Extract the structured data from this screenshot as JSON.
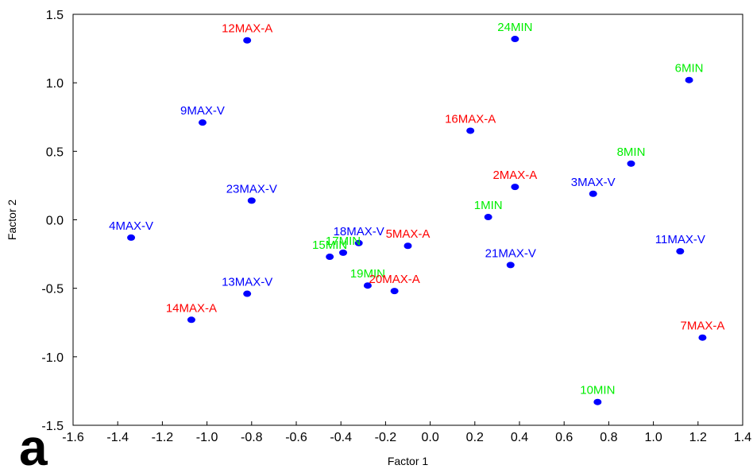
{
  "chart_data": {
    "type": "scatter",
    "panel_label": "a",
    "xlabel": "Factor 1",
    "ylabel": "Factor 2",
    "xlim": [
      -1.6,
      1.4
    ],
    "ylim": [
      -1.5,
      1.5
    ],
    "x_ticks": [
      "-1.6",
      "-1.4",
      "-1.2",
      "-1.0",
      "-0.8",
      "-0.6",
      "-0.4",
      "-0.2",
      "0.0",
      "0.2",
      "0.4",
      "0.6",
      "0.8",
      "1.0",
      "1.2",
      "1.4"
    ],
    "y_ticks": [
      "-1.5",
      "-1.0",
      "-0.5",
      "0.0",
      "0.5",
      "1.0",
      "1.5"
    ],
    "grid": false,
    "marker_color": "#0000ff",
    "label_colors": {
      "A": "#ff0000",
      "V": "#0000ff",
      "MIN": "#00ee00"
    },
    "points": [
      {
        "label": "12MAX-A",
        "x": -0.82,
        "y": 1.31,
        "group": "A"
      },
      {
        "label": "24MIN",
        "x": 0.38,
        "y": 1.32,
        "group": "MIN"
      },
      {
        "label": "6MIN",
        "x": 1.16,
        "y": 1.02,
        "group": "MIN"
      },
      {
        "label": "9MAX-V",
        "x": -1.02,
        "y": 0.71,
        "group": "V"
      },
      {
        "label": "16MAX-A",
        "x": 0.18,
        "y": 0.65,
        "group": "A"
      },
      {
        "label": "8MIN",
        "x": 0.9,
        "y": 0.41,
        "group": "MIN"
      },
      {
        "label": "2MAX-A",
        "x": 0.38,
        "y": 0.24,
        "group": "A"
      },
      {
        "label": "3MAX-V",
        "x": 0.73,
        "y": 0.19,
        "group": "V"
      },
      {
        "label": "23MAX-V",
        "x": -0.8,
        "y": 0.14,
        "group": "V"
      },
      {
        "label": "1MIN",
        "x": 0.26,
        "y": 0.02,
        "group": "MIN"
      },
      {
        "label": "4MAX-V",
        "x": -1.34,
        "y": -0.13,
        "group": "V"
      },
      {
        "label": "18MAX-V",
        "x": -0.32,
        "y": -0.17,
        "group": "V"
      },
      {
        "label": "5MAX-A",
        "x": -0.1,
        "y": -0.19,
        "group": "A"
      },
      {
        "label": "17MIN",
        "x": -0.39,
        "y": -0.24,
        "group": "MIN"
      },
      {
        "label": "15MIN",
        "x": -0.45,
        "y": -0.27,
        "group": "MIN"
      },
      {
        "label": "11MAX-V",
        "x": 1.12,
        "y": -0.23,
        "group": "V"
      },
      {
        "label": "21MAX-V",
        "x": 0.36,
        "y": -0.33,
        "group": "V"
      },
      {
        "label": "19MIN",
        "x": -0.28,
        "y": -0.48,
        "group": "MIN"
      },
      {
        "label": "20MAX-A",
        "x": -0.16,
        "y": -0.52,
        "group": "A"
      },
      {
        "label": "13MAX-V",
        "x": -0.82,
        "y": -0.54,
        "group": "V"
      },
      {
        "label": "14MAX-A",
        "x": -1.07,
        "y": -0.73,
        "group": "A"
      },
      {
        "label": "7MAX-A",
        "x": 1.22,
        "y": -0.86,
        "group": "A"
      },
      {
        "label": "10MIN",
        "x": 0.75,
        "y": -1.33,
        "group": "MIN"
      }
    ]
  }
}
